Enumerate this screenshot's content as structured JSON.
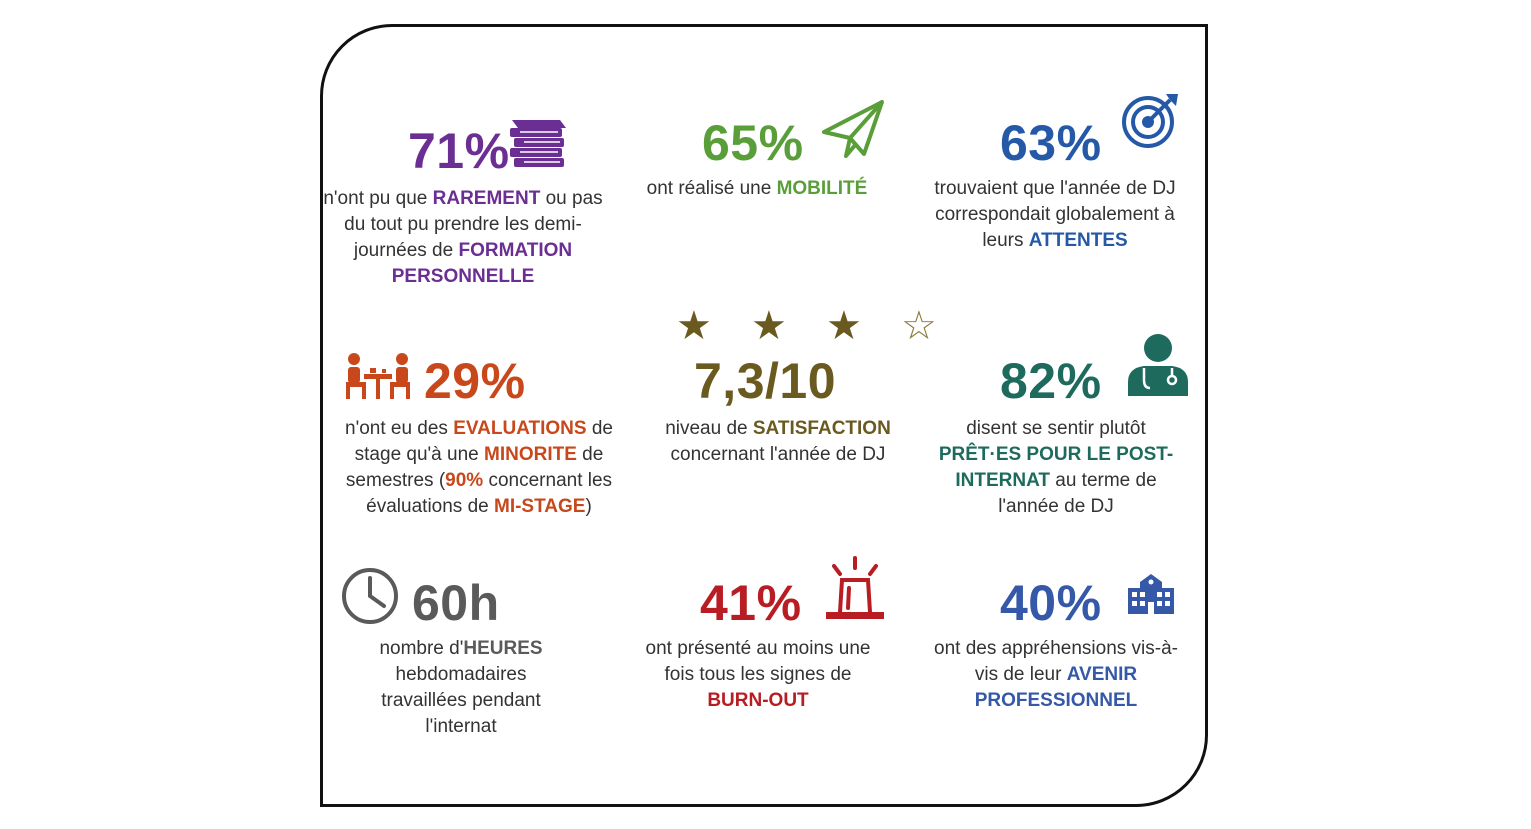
{
  "colors": {
    "purple": "#6b2f94",
    "green": "#5a9e3a",
    "blue": "#2559a8",
    "orange": "#c8481c",
    "brown": "#6b5a20",
    "teal": "#1e6b5e",
    "gray": "#5a5a5a",
    "red": "#b81d24",
    "navy": "#3558a8"
  },
  "cells": {
    "formation": {
      "stat": "71%",
      "icon": "books-icon",
      "t1": "n'ont pu que ",
      "h1": "RAREMENT",
      "t2": " ou pas du tout pu prendre les demi-journées de ",
      "h2": "FORMATION PERSONNELLE"
    },
    "mobilite": {
      "stat": "65%",
      "icon": "paper-plane-icon",
      "t1": "ont réalisé une ",
      "h1": "MOBILITÉ"
    },
    "attentes": {
      "stat": "63%",
      "icon": "target-icon",
      "t1": "trouvaient que l'année de DJ correspondait globalement à leurs ",
      "h1": "ATTENTES"
    },
    "evaluations": {
      "stat": "29%",
      "icon": "meeting-icon",
      "t1": "n'ont eu des ",
      "h1": "EVALUATIONS",
      "t2": " de stage qu'à une ",
      "h2": "MINORITE",
      "t3": " de semestres (",
      "h3": "90%",
      "t4": " concernant les évaluations de ",
      "h4": "MI-STAGE",
      "t5": ")"
    },
    "satisfaction": {
      "stat": "7,3/10",
      "stars_filled": "★ ★ ★",
      "stars_empty": "☆",
      "rating": 3,
      "t1": "niveau de ",
      "h1": "SATISFACTION",
      "t2": " concernant l'année de DJ"
    },
    "post_internat": {
      "stat": "82%",
      "icon": "doctor-icon",
      "t1": "disent se sentir plutôt ",
      "h1": "PRÊT·ES POUR LE POST-INTERNAT",
      "t2": " au terme de l'année de DJ"
    },
    "heures": {
      "stat": "60h",
      "icon": "clock-icon",
      "t1": "nombre d'",
      "h1": "HEURES",
      "t2": " hebdomadaires travaillées pendant l'internat"
    },
    "burnout": {
      "stat": "41%",
      "icon": "alarm-icon",
      "t1": "ont présenté au moins une fois tous les signes de ",
      "h1": "BURN-OUT"
    },
    "avenir": {
      "stat": "40%",
      "icon": "building-icon",
      "t1": "ont des appréhensions vis-à-vis de leur ",
      "h1": "AVENIR PROFESSIONNEL"
    }
  }
}
